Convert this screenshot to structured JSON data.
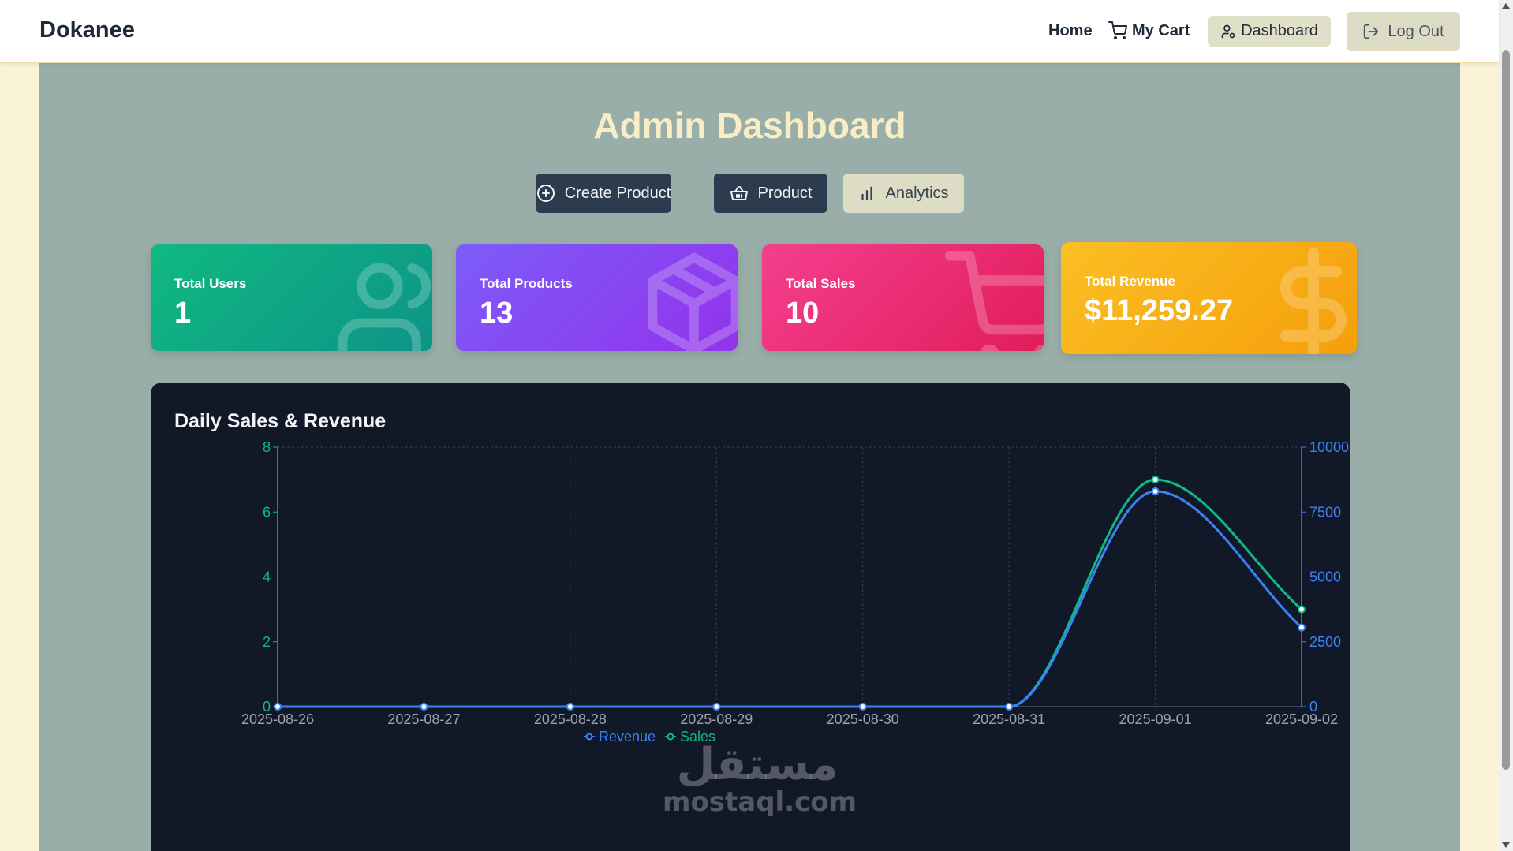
{
  "navbar": {
    "brand": "Dokanee",
    "home": "Home",
    "cart": "My Cart",
    "dashboard": "Dashboard",
    "logout": "Log Out"
  },
  "page": {
    "title": "Admin Dashboard"
  },
  "tabs": [
    {
      "label": "Create Product",
      "icon": "plus-circle-icon",
      "active": false
    },
    {
      "label": "Product",
      "icon": "basket-icon",
      "active": false
    },
    {
      "label": "Analytics",
      "icon": "bar-chart-icon",
      "active": true
    }
  ],
  "stats": [
    {
      "label": "Total Users",
      "value": "1",
      "icon": "users-icon",
      "color": "#10b981"
    },
    {
      "label": "Total Products",
      "value": "13",
      "icon": "package-icon",
      "color": "#8b5cf6"
    },
    {
      "label": "Total Sales",
      "value": "10",
      "icon": "cart-icon",
      "color": "#ec4899"
    },
    {
      "label": "Total Revenue",
      "value": "$11,259.27",
      "icon": "dollar-icon",
      "color": "#f59e0b"
    }
  ],
  "watermark": {
    "arabic": "مستقل",
    "latin": "mostaql.com"
  },
  "chart_data": {
    "type": "line",
    "title": "Daily Sales & Revenue",
    "categories": [
      "2025-08-26",
      "2025-08-27",
      "2025-08-28",
      "2025-08-29",
      "2025-08-30",
      "2025-08-31",
      "2025-09-01",
      "2025-09-02"
    ],
    "y_left": {
      "ticks": [
        "0",
        "2",
        "4",
        "6",
        "8"
      ],
      "ylim": [
        0,
        8
      ],
      "color": "#10b981"
    },
    "y_right": {
      "ticks": [
        "0",
        "2500",
        "5000",
        "7500",
        "10000"
      ],
      "ylim": [
        0,
        10000
      ],
      "color": "#3b82f6"
    },
    "series": [
      {
        "name": "Sales",
        "axis": "left",
        "color": "#10b981",
        "values": [
          0,
          0,
          0,
          0,
          0,
          0,
          7,
          3
        ]
      },
      {
        "name": "Revenue",
        "axis": "right",
        "color": "#3b82f6",
        "values": [
          0,
          0,
          0,
          0,
          0,
          0,
          8300,
          3050
        ]
      }
    ],
    "legend": [
      "Revenue",
      "Sales"
    ],
    "legend_position": "bottom",
    "grid": true
  }
}
